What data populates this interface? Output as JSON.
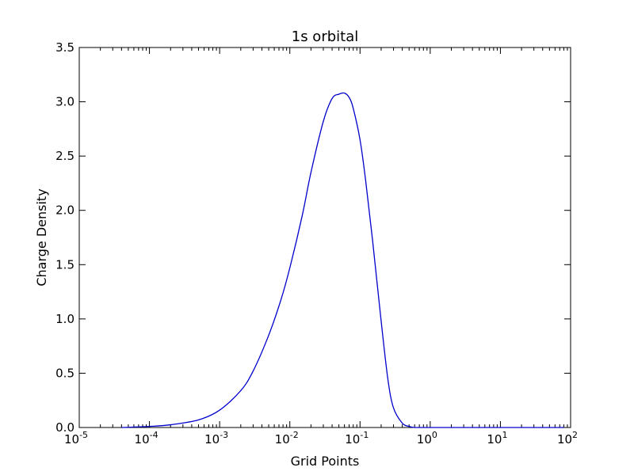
{
  "chart_data": {
    "type": "line",
    "title": "1s orbital",
    "xlabel": "Grid Points",
    "ylabel": "Charge Density",
    "xscale": "log",
    "xlim": [
      1e-05,
      100
    ],
    "ylim": [
      0,
      3.5
    ],
    "grid": false,
    "line_color": "#0000cc",
    "x_ticks": [
      {
        "base": "10",
        "exp": "-5"
      },
      {
        "base": "10",
        "exp": "-4"
      },
      {
        "base": "10",
        "exp": "-3"
      },
      {
        "base": "10",
        "exp": "-2"
      },
      {
        "base": "10",
        "exp": "-1"
      },
      {
        "base": "10",
        "exp": "0"
      },
      {
        "base": "10",
        "exp": "1"
      },
      {
        "base": "10",
        "exp": "2"
      }
    ],
    "y_ticks": [
      "0.0",
      "0.5",
      "1.0",
      "1.5",
      "2.0",
      "2.5",
      "3.0",
      "3.5"
    ],
    "series": [
      {
        "x": [
          4e-05,
          0.0001,
          0.0002,
          0.0005,
          0.001,
          0.002,
          0.003,
          0.005,
          0.0075,
          0.01,
          0.015,
          0.02,
          0.03,
          0.04,
          0.05,
          0.06,
          0.07,
          0.08,
          0.1,
          0.12,
          0.15,
          0.2,
          0.25,
          0.3,
          0.4,
          0.5,
          0.6,
          0.8,
          1,
          2,
          5,
          10,
          20,
          50,
          80
        ],
        "y": [
          0.0,
          0.01,
          0.025,
          0.07,
          0.16,
          0.34,
          0.52,
          0.85,
          1.18,
          1.47,
          1.95,
          2.35,
          2.82,
          3.03,
          3.07,
          3.08,
          3.04,
          2.94,
          2.65,
          2.28,
          1.74,
          0.98,
          0.44,
          0.18,
          0.04,
          0.01,
          0.0,
          0.0,
          0.0,
          0.0,
          0.0,
          0.0,
          0.0,
          0.0,
          0.0
        ]
      }
    ]
  }
}
